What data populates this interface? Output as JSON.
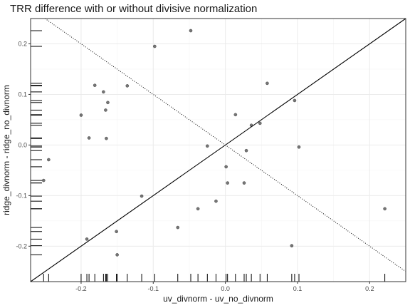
{
  "chart_data": {
    "type": "scatter",
    "title": "TRR difference with or without divisive normalization",
    "xlabel": "uv_divnorm - uv_no_divnorm",
    "ylabel": "ridge_divnorm - ridge_no_divnorm",
    "xlim": [
      -0.27,
      0.25
    ],
    "ylim": [
      -0.27,
      0.25
    ],
    "x_ticks": [
      -0.2,
      -0.1,
      0.0,
      0.1,
      0.2
    ],
    "x_tick_labels": [
      "-0.2",
      "-0.1",
      "0.0",
      "0.1",
      "0.2"
    ],
    "y_ticks": [
      -0.2,
      -0.1,
      0.0,
      0.1,
      0.2
    ],
    "y_tick_labels": [
      "-0.2",
      "-0.1",
      "0.0",
      "0.1",
      "0.2"
    ],
    "grid": true,
    "rug": true,
    "reference_lines": [
      {
        "style": "solid",
        "slope": 1,
        "intercept": 0
      },
      {
        "style": "dotted",
        "slope": -1,
        "intercept": 0
      }
    ],
    "points": [
      {
        "x": -0.252,
        "y": -0.07
      },
      {
        "x": -0.245,
        "y": -0.029
      },
      {
        "x": -0.2,
        "y": 0.059
      },
      {
        "x": -0.192,
        "y": -0.186
      },
      {
        "x": -0.189,
        "y": 0.014
      },
      {
        "x": -0.181,
        "y": 0.118
      },
      {
        "x": -0.169,
        "y": 0.105
      },
      {
        "x": -0.166,
        "y": 0.069
      },
      {
        "x": -0.165,
        "y": 0.013
      },
      {
        "x": -0.163,
        "y": 0.084
      },
      {
        "x": -0.151,
        "y": -0.171
      },
      {
        "x": -0.15,
        "y": -0.217
      },
      {
        "x": -0.136,
        "y": 0.117
      },
      {
        "x": -0.116,
        "y": -0.101
      },
      {
        "x": -0.098,
        "y": 0.195
      },
      {
        "x": -0.066,
        "y": -0.163
      },
      {
        "x": -0.048,
        "y": 0.226
      },
      {
        "x": -0.038,
        "y": -0.126
      },
      {
        "x": -0.025,
        "y": -0.002
      },
      {
        "x": -0.013,
        "y": -0.111
      },
      {
        "x": 0.001,
        "y": -0.043
      },
      {
        "x": 0.003,
        "y": -0.075
      },
      {
        "x": 0.014,
        "y": 0.06
      },
      {
        "x": 0.026,
        "y": -0.075
      },
      {
        "x": 0.029,
        "y": -0.011
      },
      {
        "x": 0.036,
        "y": 0.039
      },
      {
        "x": 0.048,
        "y": 0.043
      },
      {
        "x": 0.058,
        "y": 0.122
      },
      {
        "x": 0.092,
        "y": -0.199
      },
      {
        "x": 0.096,
        "y": 0.088
      },
      {
        "x": 0.102,
        "y": -0.004
      },
      {
        "x": 0.221,
        "y": -0.126
      }
    ]
  }
}
